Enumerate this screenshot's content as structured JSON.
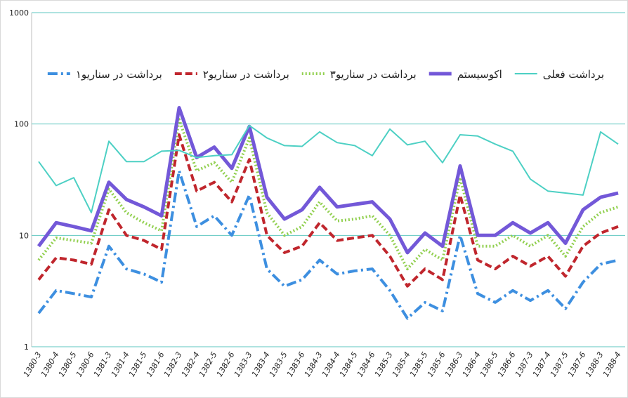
{
  "chart_data": {
    "type": "line",
    "log_scale": true,
    "grid": true,
    "legend": "top",
    "categories": [
      "1380-3",
      "1380-4",
      "1380-5",
      "1380-6",
      "1381-3",
      "1381-4",
      "1381-5",
      "1381-6",
      "1382-3",
      "1382-4",
      "1382-5",
      "1382-6",
      "1383-3",
      "1383-4",
      "1383-5",
      "1383-6",
      "1384-3",
      "1384-4",
      "1384-5",
      "1384-6",
      "1385-3",
      "1385-4",
      "1385-5",
      "1385-6",
      "1386-3",
      "1386-4",
      "1386-5",
      "1386-6",
      "1387-3",
      "1387-4",
      "1387-5",
      "1387-6",
      "1388-3",
      "1388-4"
    ],
    "ylim": [
      1,
      1000
    ],
    "yticks": [
      1,
      10,
      100,
      1000
    ],
    "series": [
      {
        "name": "برداشت در سناریو۱",
        "color": "#3d8fe0",
        "dash": "14 5 3 5",
        "width": 4,
        "values": [
          2,
          3.2,
          3,
          2.8,
          8,
          5,
          4.5,
          3.8,
          38,
          12,
          15,
          10,
          23,
          5,
          3.5,
          4,
          6,
          4.5,
          4.8,
          5,
          3.2,
          1.8,
          2.5,
          2.1,
          10,
          3,
          2.5,
          3.2,
          2.6,
          3.2,
          2.2,
          3.8,
          5.5,
          6
        ]
      },
      {
        "name": "برداشت در سناریو۲",
        "color": "#c0262d",
        "dash": "10 5",
        "width": 4,
        "values": [
          4,
          6.3,
          6,
          5.5,
          17,
          10,
          9,
          7.5,
          80,
          25,
          30,
          20,
          48,
          10,
          7,
          8,
          13,
          9,
          9.5,
          10,
          6.5,
          3.5,
          5,
          4,
          23,
          6,
          5,
          6.5,
          5.3,
          6.5,
          4.3,
          8,
          10.5,
          12
        ]
      },
      {
        "name": "برداشت در سناریو۳",
        "color": "#92d050",
        "dash": "2 3",
        "width": 4,
        "values": [
          6,
          9.5,
          9,
          8.5,
          26,
          16,
          13,
          11,
          110,
          38,
          45,
          30,
          75,
          16,
          10,
          12,
          20,
          13.5,
          14,
          15,
          10,
          5,
          7.5,
          6,
          33,
          8,
          8,
          10,
          8,
          10,
          6.5,
          12,
          16,
          18
        ]
      },
      {
        "name": "اکوسیستم",
        "color": "#7358d8",
        "dash": "none",
        "width": 5,
        "values": [
          8,
          13,
          12,
          11,
          30,
          21,
          18,
          15,
          140,
          50,
          62,
          40,
          95,
          22,
          14,
          17,
          27,
          18,
          19,
          20,
          14,
          7,
          10.5,
          8,
          42,
          10,
          10,
          13,
          10.5,
          13,
          8.5,
          17,
          22,
          24
        ]
      },
      {
        "name": "برداشت فعلی",
        "color": "#4dd0c4",
        "dash": "none",
        "width": 2,
        "values": [
          46,
          28,
          33,
          16,
          70,
          46,
          46,
          57,
          58,
          50,
          52,
          53,
          97,
          75,
          64,
          63,
          85,
          68,
          64,
          52,
          90,
          65,
          70,
          45,
          80,
          78,
          66,
          57,
          32,
          25,
          24,
          23,
          85,
          66
        ]
      }
    ]
  }
}
